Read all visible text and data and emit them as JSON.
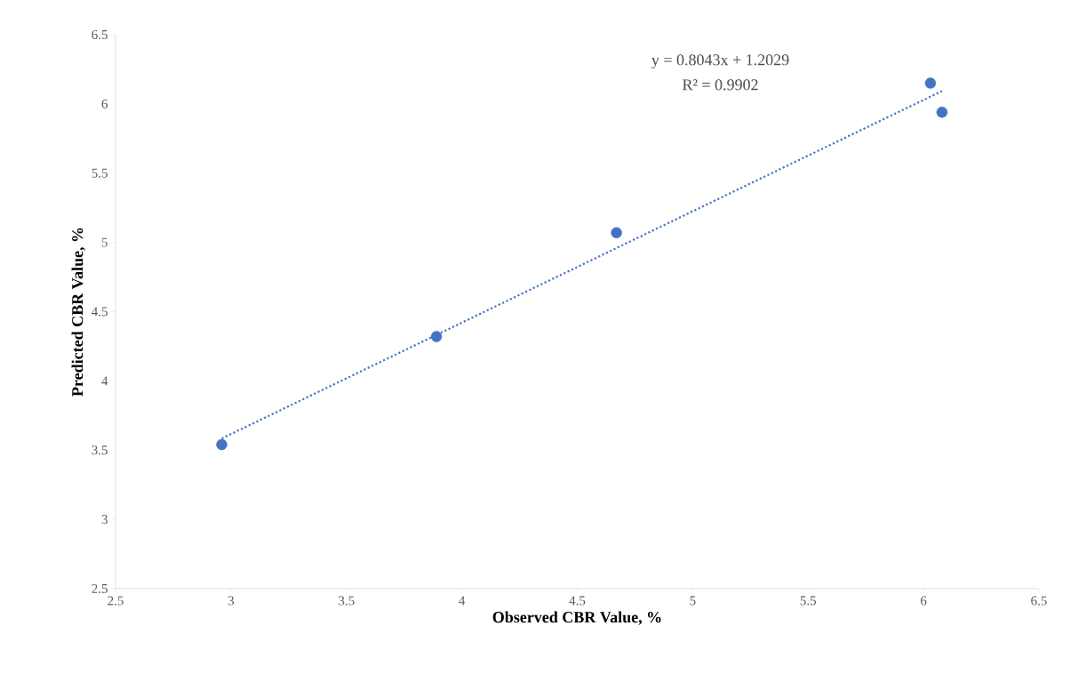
{
  "chart_data": {
    "type": "scatter",
    "xlabel": "Observed CBR Value, %",
    "ylabel": "Predicted CBR Value, %",
    "series": [
      {
        "color": "#4472c4",
        "marker": "circle",
        "x": [
          2.96,
          3.89,
          4.67,
          6.03,
          6.08
        ],
        "values": [
          3.54,
          4.32,
          5.07,
          6.15,
          5.94
        ]
      },
      {
        "type": "line",
        "color": "#4472c4",
        "marker": "none",
        "line_style": "dotted",
        "x": [
          2.96,
          6.08
        ],
        "values": [
          3.584,
          6.093
        ]
      }
    ],
    "annotations": [
      "y = 0.8043x + 1.2029",
      "R² = 0.9902"
    ],
    "xlim": [
      2.5,
      6.5
    ],
    "ylim": [
      2.5,
      6.5
    ],
    "xticks": [
      2.5,
      3,
      3.5,
      4,
      4.5,
      5,
      5.5,
      6,
      6.5
    ],
    "yticks": [
      2.5,
      3,
      3.5,
      4,
      4.5,
      5,
      5.5,
      6,
      6.5
    ],
    "grid": false
  }
}
